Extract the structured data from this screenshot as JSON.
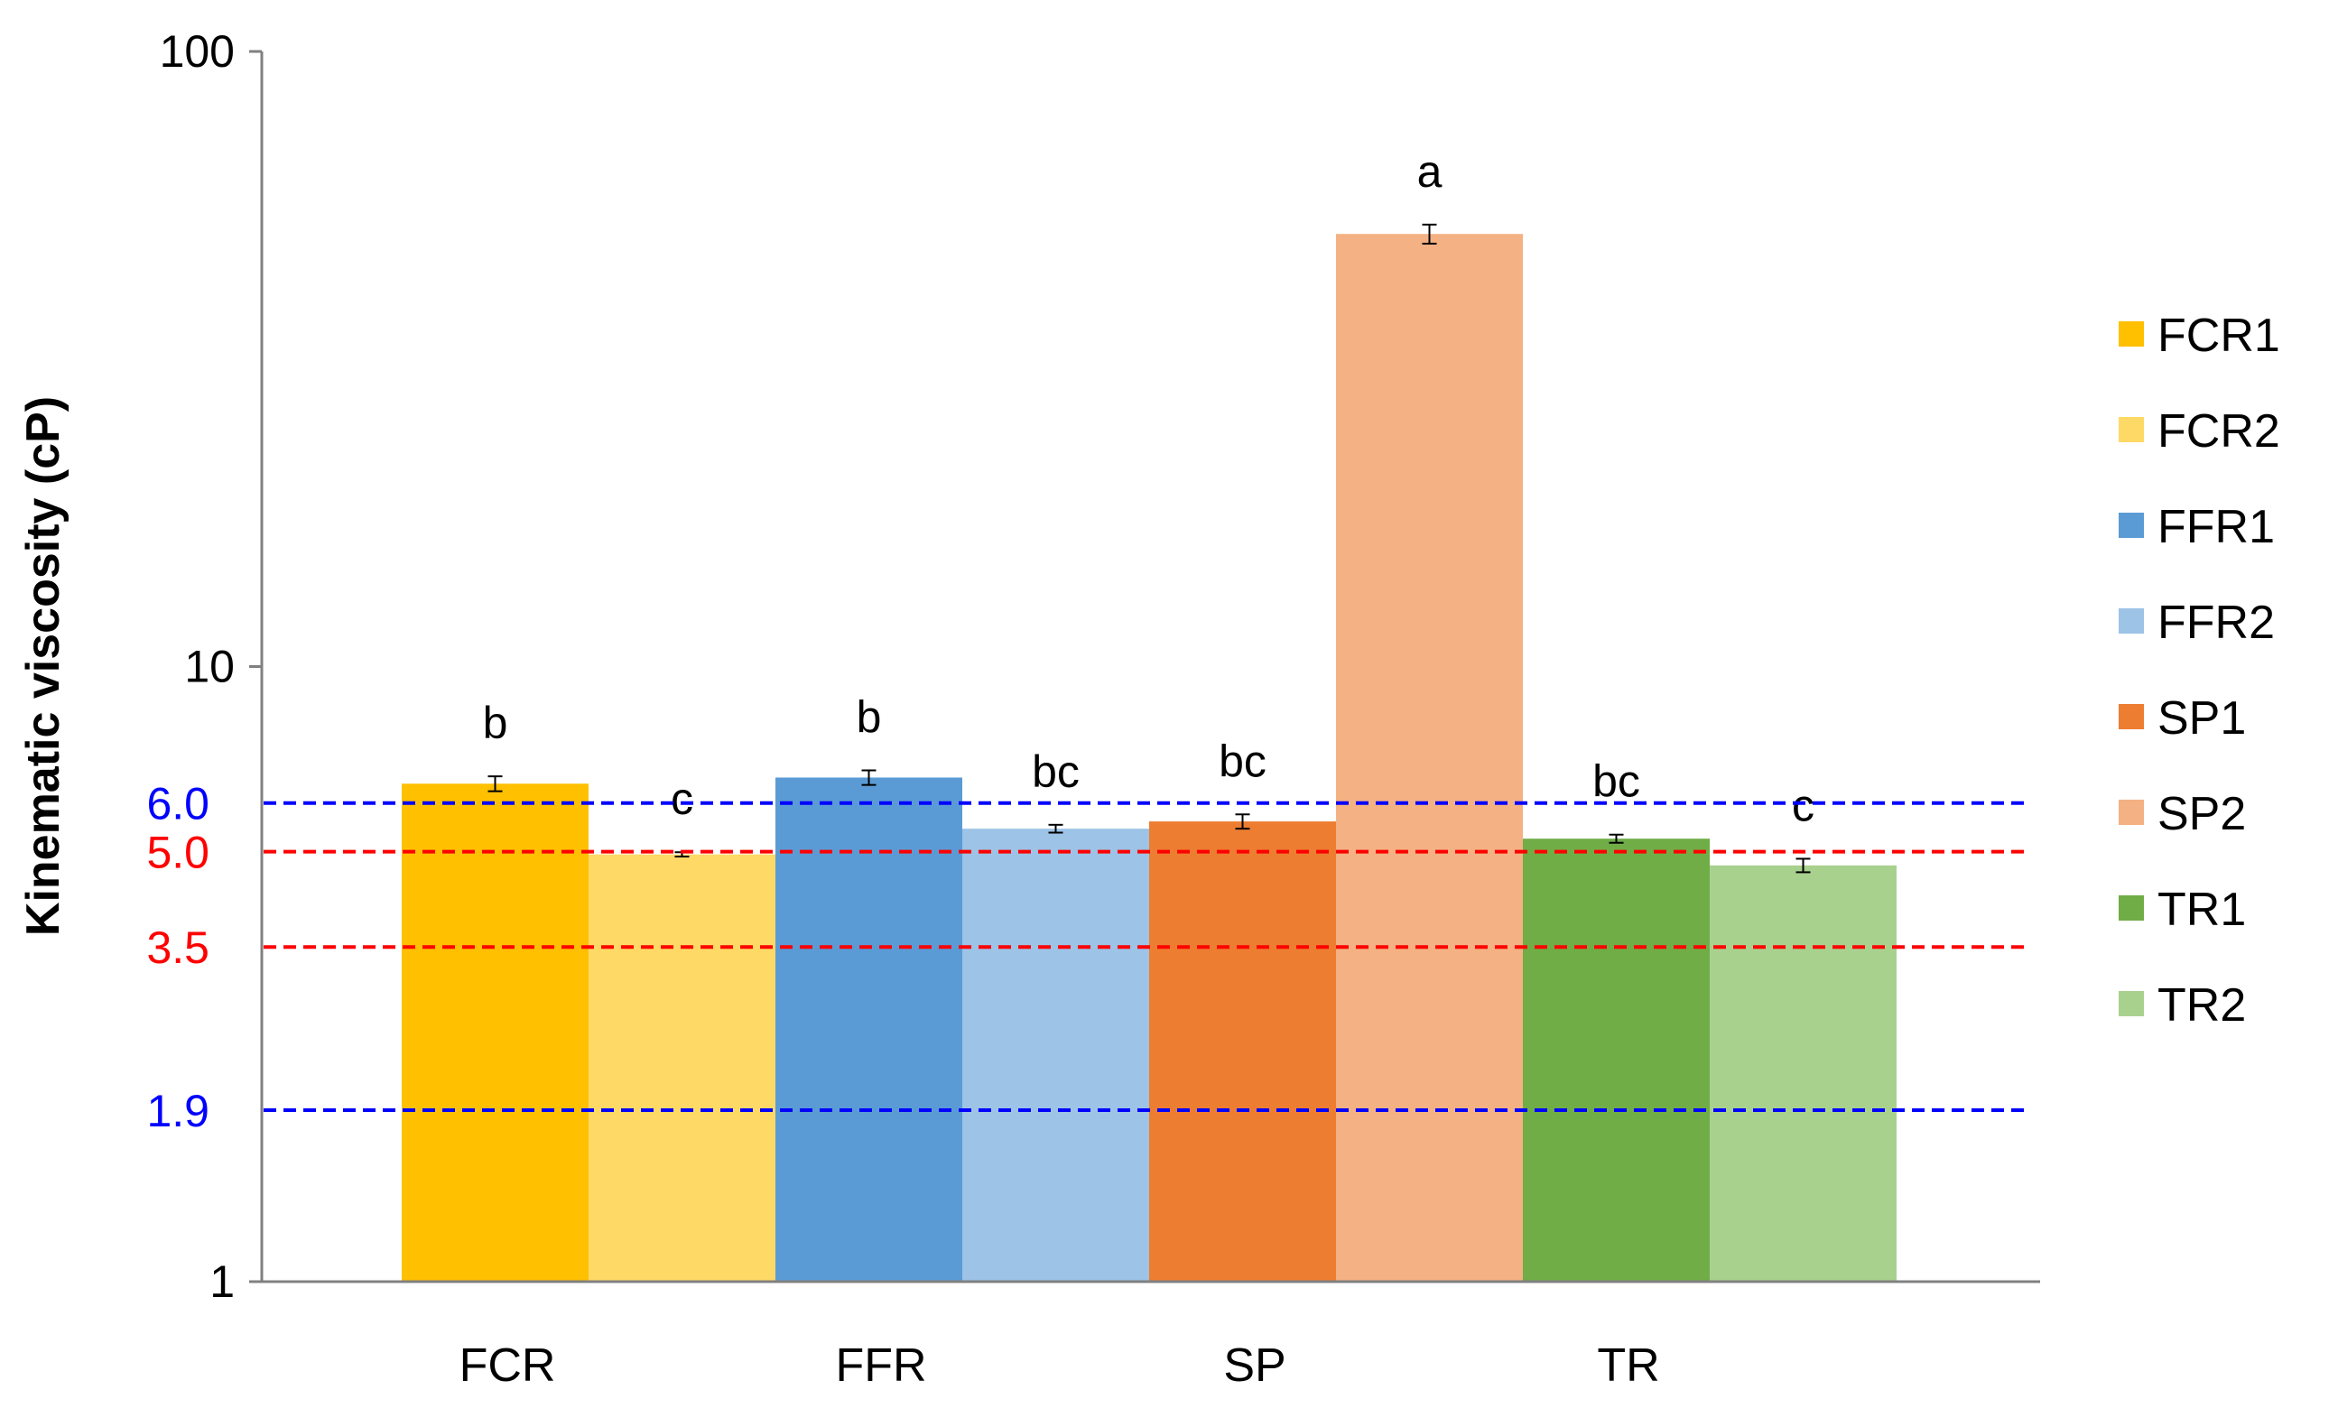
{
  "chart_data": {
    "type": "bar",
    "scale": "log",
    "title": "",
    "xlabel": "",
    "ylabel": "Kinematic viscosity (cP)",
    "ylim": [
      1,
      100
    ],
    "yticks": [
      {
        "value": 1,
        "label": "1"
      },
      {
        "value": 10,
        "label": "10"
      },
      {
        "value": 100,
        "label": "100"
      }
    ],
    "categories": [
      "FCR",
      "FFR",
      "SP",
      "TR"
    ],
    "series": [
      {
        "name": "FCR1",
        "category": "FCR",
        "value": 6.45,
        "error": 0.18,
        "letter": "b",
        "color": "#FFC000"
      },
      {
        "name": "FCR2",
        "category": "FCR",
        "value": 4.95,
        "error": 0.04,
        "letter": "c",
        "color": "#FFD966"
      },
      {
        "name": "FFR1",
        "category": "FFR",
        "value": 6.6,
        "error": 0.18,
        "letter": "b",
        "color": "#5B9BD5"
      },
      {
        "name": "FFR2",
        "category": "FFR",
        "value": 5.45,
        "error": 0.08,
        "letter": "bc",
        "color": "#9DC3E6"
      },
      {
        "name": "SP1",
        "category": "SP",
        "value": 5.6,
        "error": 0.15,
        "letter": "bc",
        "color": "#ED7D31"
      },
      {
        "name": "SP2",
        "category": "SP",
        "value": 50.5,
        "error": 1.8,
        "letter": "a",
        "color": "#F4B183"
      },
      {
        "name": "TR1",
        "category": "TR",
        "value": 5.25,
        "error": 0.08,
        "letter": "bc",
        "color": "#70AD47"
      },
      {
        "name": "TR2",
        "category": "TR",
        "value": 4.75,
        "error": 0.12,
        "letter": "c",
        "color": "#A9D18E"
      }
    ],
    "reference_lines": [
      {
        "value": 6.0,
        "label": "6.0",
        "color": "#0000FF"
      },
      {
        "value": 5.0,
        "label": "5.0",
        "color": "#FF0000"
      },
      {
        "value": 3.5,
        "label": "3.5",
        "color": "#FF0000"
      },
      {
        "value": 1.9,
        "label": "1.9",
        "color": "#0000FF"
      }
    ],
    "legend": {
      "position": "right"
    }
  }
}
